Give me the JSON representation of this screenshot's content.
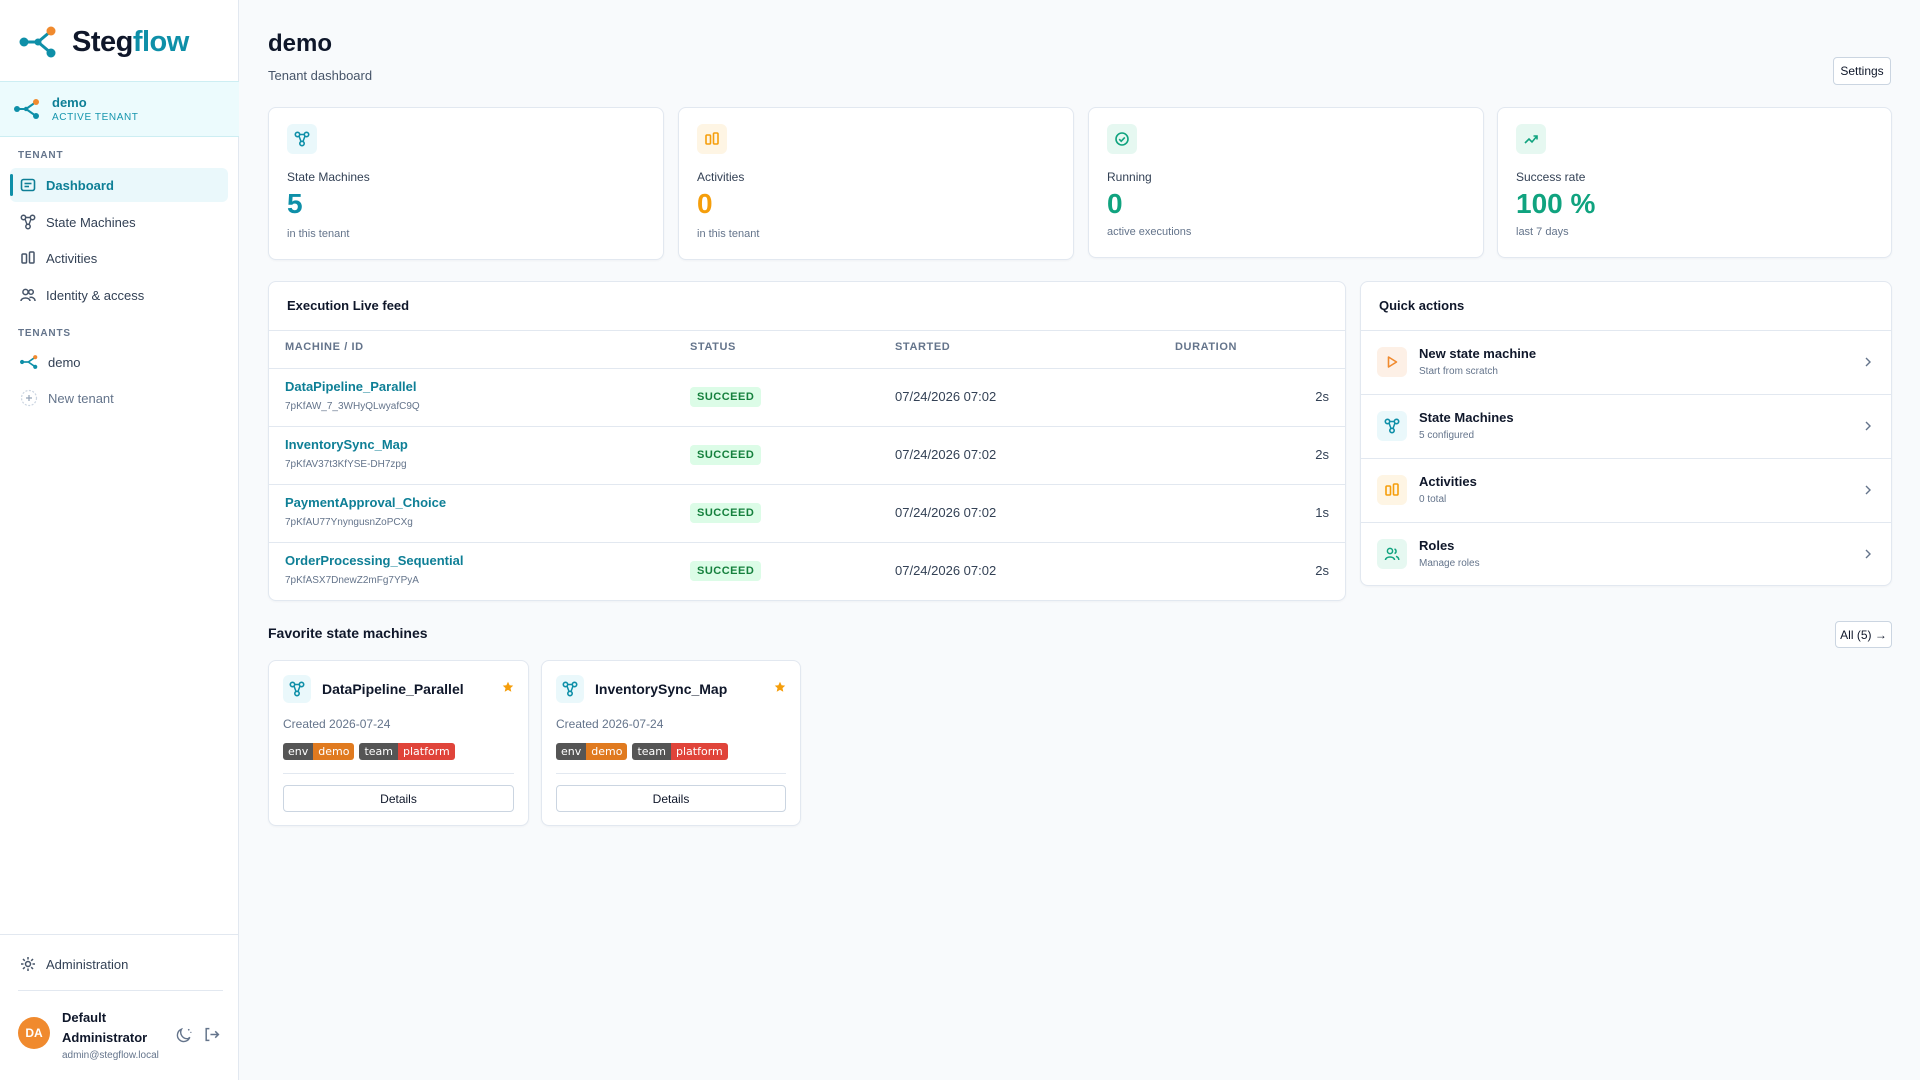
{
  "brand": {
    "name_a": "Steg",
    "name_b": "flow"
  },
  "tenant": {
    "name": "demo",
    "status": "ACTIVE TENANT"
  },
  "nav": {
    "section_tenant": "TENANT",
    "items": [
      {
        "label": "Dashboard",
        "icon": "dashboard-icon"
      },
      {
        "label": "State Machines",
        "icon": "state-machine-icon"
      },
      {
        "label": "Activities",
        "icon": "activities-icon"
      },
      {
        "label": "Identity & access",
        "icon": "users-icon"
      }
    ],
    "section_tenants": "TENANTS",
    "tenants": [
      {
        "label": "demo"
      }
    ],
    "new_tenant": "New tenant",
    "administration": "Administration"
  },
  "user": {
    "initials": "DA",
    "name": "Default Administrator",
    "email": "admin@stegflow.local"
  },
  "header": {
    "title": "demo",
    "subtitle": "Tenant dashboard",
    "settings": "Settings"
  },
  "stats": [
    {
      "label": "State Machines",
      "value": "5",
      "note": "in this tenant",
      "color": "#0e8fa8"
    },
    {
      "label": "Activities",
      "value": "0",
      "note": "in this tenant",
      "color": "#f59e0b"
    },
    {
      "label": "Running",
      "value": "0",
      "note": "active executions",
      "color": "#10a37f"
    },
    {
      "label": "Success rate",
      "value": "100 %",
      "note": "last 7 days",
      "color": "#10a37f"
    }
  ],
  "feed": {
    "title": "Execution Live feed",
    "columns": {
      "machine": "MACHINE / ID",
      "status": "STATUS",
      "started": "STARTED",
      "duration": "DURATION"
    },
    "rows": [
      {
        "name": "DataPipeline_Parallel",
        "id": "7pKfAW_7_3WHyQLwyafC9Q",
        "status": "SUCCEED",
        "started": "07/24/2026 07:02",
        "duration": "2s"
      },
      {
        "name": "InventorySync_Map",
        "id": "7pKfAV37t3KfYSE-DH7zpg",
        "status": "SUCCEED",
        "started": "07/24/2026 07:02",
        "duration": "2s"
      },
      {
        "name": "PaymentApproval_Choice",
        "id": "7pKfAU77YnyngusnZoPCXg",
        "status": "SUCCEED",
        "started": "07/24/2026 07:02",
        "duration": "1s"
      },
      {
        "name": "OrderProcessing_Sequential",
        "id": "7pKfASX7DnewZ2mFg7YPyA",
        "status": "SUCCEED",
        "started": "07/24/2026 07:02",
        "duration": "2s"
      }
    ]
  },
  "quick_actions": {
    "title": "Quick actions",
    "items": [
      {
        "title": "New state machine",
        "sub": "Start from scratch"
      },
      {
        "title": "State Machines",
        "sub": "5 configured"
      },
      {
        "title": "Activities",
        "sub": "0 total"
      },
      {
        "title": "Roles",
        "sub": "Manage roles"
      }
    ]
  },
  "favorites": {
    "title": "Favorite state machines",
    "all_button": "All (5) →",
    "items": [
      {
        "name": "DataPipeline_Parallel",
        "created": "Created 2026-07-24",
        "tags": [
          {
            "k": "env",
            "v": "demo"
          },
          {
            "k": "team",
            "v": "platform"
          }
        ],
        "details": "Details"
      },
      {
        "name": "InventorySync_Map",
        "created": "Created 2026-07-24",
        "tags": [
          {
            "k": "env",
            "v": "demo"
          },
          {
            "k": "team",
            "v": "platform"
          }
        ],
        "details": "Details"
      }
    ]
  },
  "colors": {
    "accent": "#0e8fa8",
    "tag_env": "#e07a1f",
    "tag_team": "#e0443a",
    "star": "#f59e0b"
  }
}
